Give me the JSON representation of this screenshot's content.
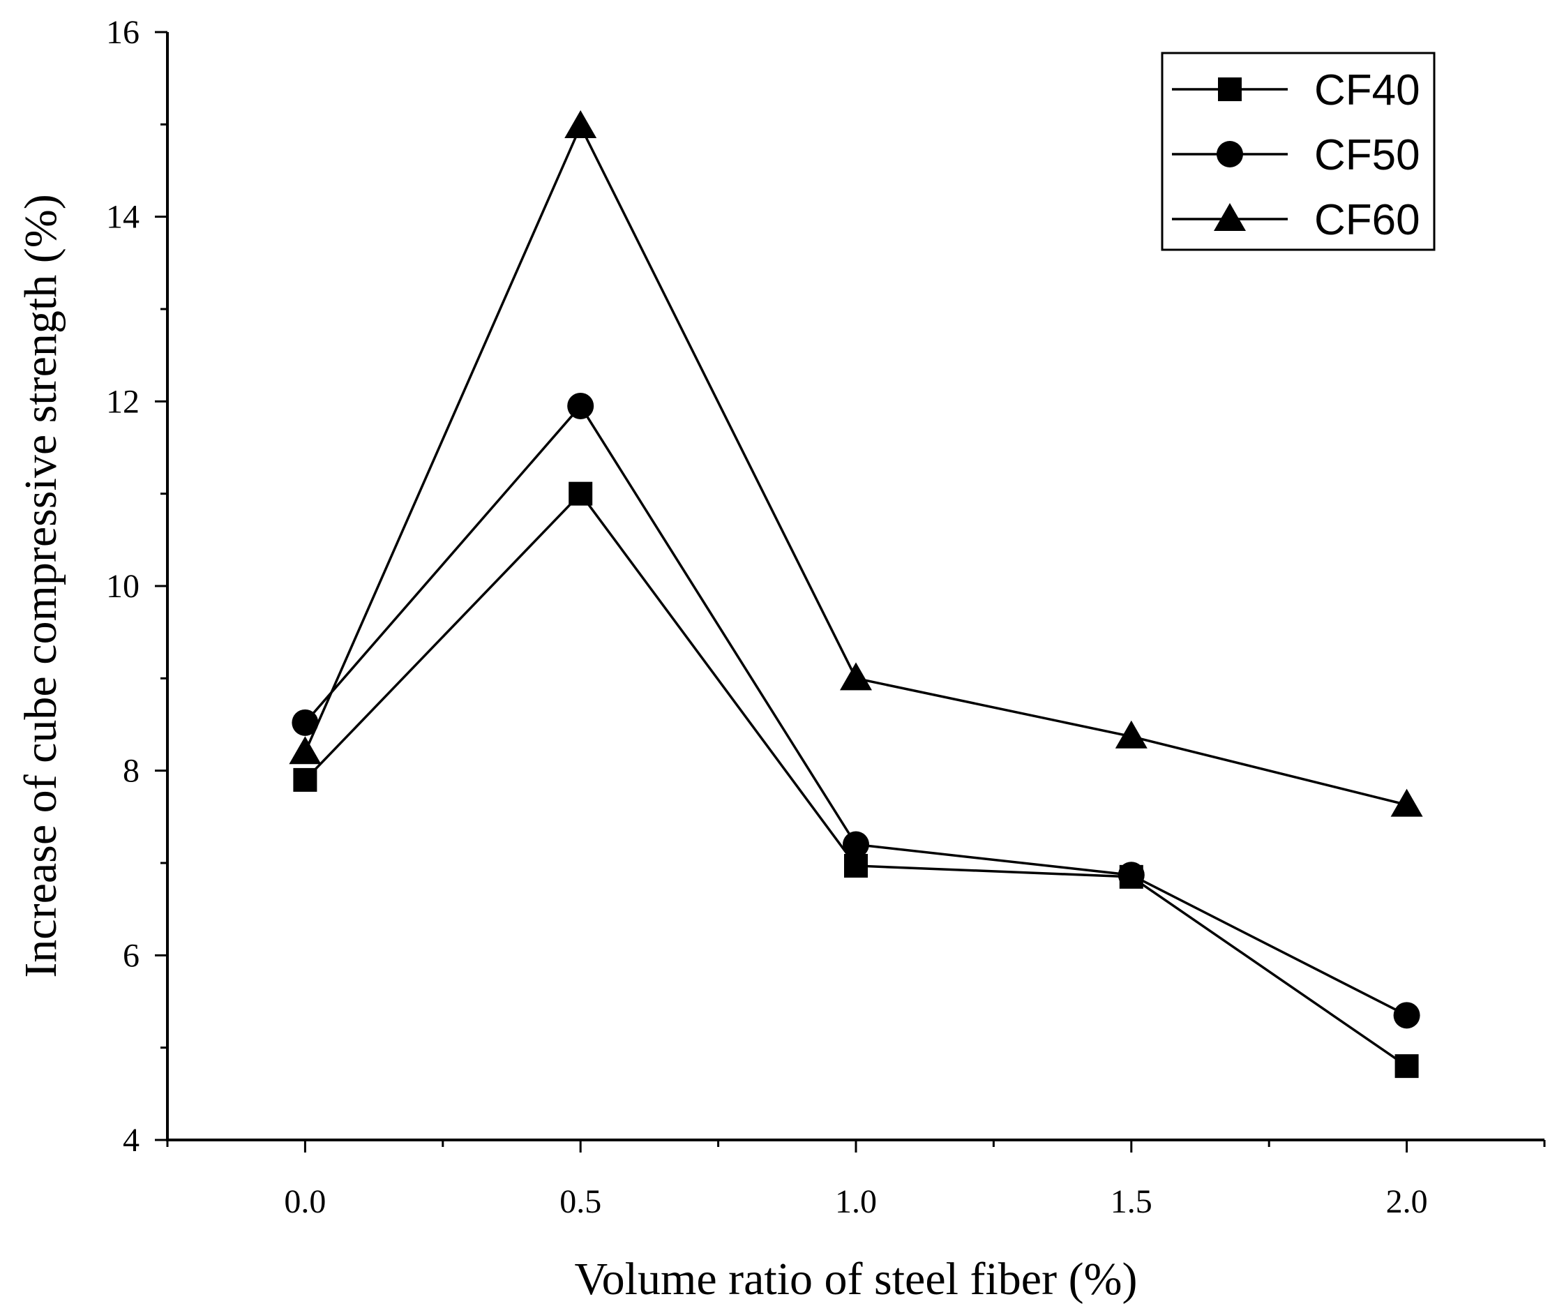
{
  "chart_data": {
    "type": "line",
    "x": [
      0.0,
      0.5,
      1.0,
      1.5,
      2.0
    ],
    "x_tick_labels": [
      "0.0",
      "0.5",
      "1.0",
      "1.5",
      "2.0"
    ],
    "y_ticks": [
      4,
      6,
      8,
      10,
      12,
      14,
      16
    ],
    "xlim": [
      -0.25,
      2.25
    ],
    "ylim": [
      4,
      16
    ],
    "xlabel": "Volume ratio of steel fiber (%)",
    "ylabel": "Increase of cube compressive strength (%)",
    "grid": false,
    "legend_position": "top-right",
    "series": [
      {
        "name": "CF40",
        "marker": "square",
        "values": [
          7.9,
          11.0,
          6.97,
          6.85,
          4.8
        ]
      },
      {
        "name": "CF50",
        "marker": "circle",
        "values": [
          8.52,
          11.95,
          7.2,
          6.87,
          5.35
        ]
      },
      {
        "name": "CF60",
        "marker": "triangle",
        "values": [
          8.2,
          14.98,
          9.0,
          8.37,
          7.63
        ]
      }
    ],
    "colors": {
      "line": "#000000",
      "marker": "#000000"
    }
  }
}
